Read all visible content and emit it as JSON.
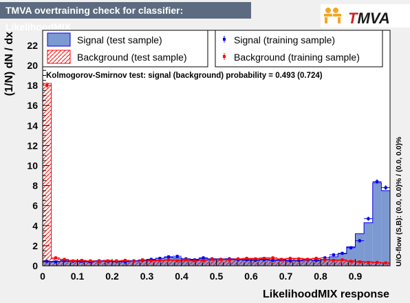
{
  "window_title": "TMVA overtraining check for classifier: LikelihoodMIX",
  "logo_text": "TMVA",
  "chart_data": {
    "type": "histogram",
    "xlabel": "LikelihoodMIX response",
    "ylabel": "(1/N) dN / dx",
    "right_label": "U/O-flow (S,B): (0.0, 0.0)% / (0.0, 0.0)%",
    "ks_text": "Kolmogorov-Smirnov test: signal (background) probability = 0.493 (0.724)",
    "xlim": [
      0,
      1
    ],
    "ylim": [
      0,
      23.5
    ],
    "x_ticks": [
      0,
      0.1,
      0.2,
      0.3,
      0.4,
      0.5,
      0.6,
      0.7,
      0.8,
      0.9
    ],
    "x_tick_labels": [
      "0",
      "0.1",
      "0.2",
      "0.3",
      "0.4",
      "0.5",
      "0.6",
      "0.7",
      "0.8",
      "0.9"
    ],
    "y_ticks": [
      0,
      2,
      4,
      6,
      8,
      10,
      12,
      14,
      16,
      18,
      20,
      22
    ],
    "y_tick_labels": [
      "0",
      "2",
      "4",
      "6",
      "8",
      "10",
      "12",
      "14",
      "16",
      "18",
      "20",
      "22"
    ],
    "bin_width": 0.025,
    "legend": [
      {
        "label": "Signal (test sample)",
        "style": "filled-blue"
      },
      {
        "label": "Signal (training sample)",
        "style": "marker-blue"
      },
      {
        "label": "Background (test sample)",
        "style": "hatched-red"
      },
      {
        "label": "Background (training sample)",
        "style": "marker-red"
      }
    ],
    "colors": {
      "signal_fill": "#7d99d1",
      "signal_line": "#0000ee",
      "background": "#ff0000",
      "frame": "#000000"
    },
    "series": [
      {
        "name": "Signal (test sample)",
        "values": [
          0.4,
          0.45,
          0.45,
          0.5,
          0.4,
          0.45,
          0.45,
          0.5,
          0.4,
          0.45,
          0.5,
          0.55,
          0.6,
          0.75,
          0.85,
          0.8,
          0.7,
          0.65,
          0.75,
          0.6,
          0.7,
          0.65,
          0.7,
          0.55,
          0.6,
          0.65,
          0.6,
          0.55,
          0.55,
          0.5,
          0.6,
          0.5,
          0.6,
          0.9,
          1.2,
          1.9,
          3.2,
          4.3,
          8.3,
          7.5
        ]
      },
      {
        "name": "Signal (training sample)",
        "values": [
          0.45,
          0.4,
          0.5,
          0.45,
          0.45,
          0.4,
          0.5,
          0.45,
          0.45,
          0.4,
          0.5,
          0.55,
          0.65,
          0.75,
          0.9,
          0.95,
          0.7,
          0.6,
          0.8,
          0.7,
          0.65,
          0.7,
          0.6,
          0.6,
          0.55,
          0.6,
          0.55,
          0.6,
          0.5,
          0.55,
          0.6,
          0.55,
          0.8,
          1.1,
          1.25,
          1.8,
          2.5,
          4.7,
          8.4,
          7.8
        ]
      },
      {
        "name": "Background (test sample)",
        "values": [
          18.2,
          0.7,
          0.6,
          0.55,
          0.5,
          0.45,
          0.5,
          0.55,
          0.45,
          0.5,
          0.45,
          0.5,
          0.55,
          0.5,
          0.55,
          0.6,
          0.5,
          0.55,
          0.6,
          0.7,
          0.6,
          0.7,
          0.65,
          0.7,
          0.75,
          0.8,
          0.75,
          0.7,
          0.7,
          0.75,
          0.7,
          0.7,
          0.65,
          0.6,
          0.55,
          0.5,
          0.45,
          0.4,
          0.3,
          0.3
        ]
      },
      {
        "name": "Background (training sample)",
        "values": [
          18.0,
          0.8,
          0.65,
          0.5,
          0.55,
          0.5,
          0.45,
          0.5,
          0.5,
          0.55,
          0.45,
          0.6,
          0.5,
          0.55,
          0.6,
          0.5,
          0.6,
          0.5,
          0.55,
          0.65,
          0.65,
          0.6,
          0.7,
          0.75,
          0.7,
          0.75,
          0.8,
          0.65,
          0.75,
          0.7,
          0.65,
          0.75,
          0.6,
          0.55,
          0.6,
          0.45,
          0.4,
          0.35,
          0.35,
          0.3
        ]
      }
    ]
  }
}
